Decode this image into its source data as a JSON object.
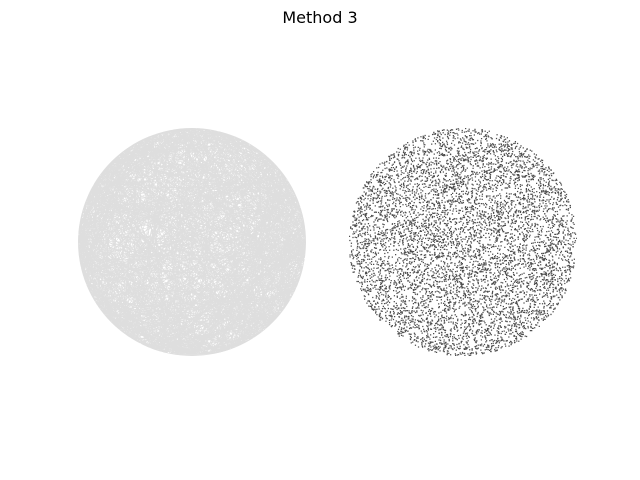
{
  "figure": {
    "title": "Method 3",
    "background": "#ffffff"
  },
  "panels": [
    {
      "kind": "random-chords-in-circle",
      "stroke_color": "#000000",
      "stroke_opacity": 0.13,
      "chord_count": 1100
    },
    {
      "kind": "random-points-in-circle",
      "fill_color": "#000000",
      "fill_opacity": 0.7,
      "point_count": 7000
    }
  ]
}
